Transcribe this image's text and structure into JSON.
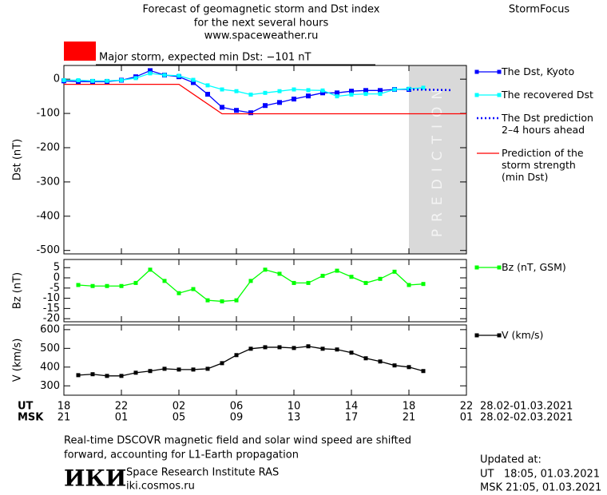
{
  "header": {
    "title_lines": [
      "Forecast of geomagnetic storm and Dst index",
      "for the next several hours",
      "www.spaceweather.ru"
    ],
    "brand": "StormFocus"
  },
  "chart_data": [
    {
      "type": "line",
      "y_label": "Dst (nT)",
      "xlim": [
        0,
        28
      ],
      "ylim": [
        -510,
        40
      ],
      "yticks": [
        0,
        -100,
        -200,
        -300,
        -400,
        -500
      ],
      "annotation": "Major storm, expected min Dst: −101 nT",
      "annotation_color": "#ff0000",
      "shade": {
        "label": "PREDICTION",
        "x": [
          24,
          28
        ],
        "color": "#d9d9d9"
      },
      "series": [
        {
          "name": "The Dst, Kyoto",
          "color": "#0000ff",
          "marker": "square",
          "dash": "solid",
          "x": [
            0,
            1,
            2,
            3,
            4,
            5,
            6,
            7,
            8,
            9,
            10,
            11,
            12,
            13,
            14,
            15,
            16,
            17,
            18,
            19,
            20,
            21,
            22,
            23,
            24
          ],
          "values": [
            -5,
            -7,
            -7,
            -7,
            -3,
            7,
            25,
            12,
            7,
            -10,
            -44,
            -82,
            -91,
            -98,
            -77,
            -68,
            -58,
            -49,
            -40,
            -40,
            -35,
            -33,
            -33,
            -30,
            -30
          ]
        },
        {
          "name": "The recovered Dst",
          "color": "#00ffff",
          "marker": "square-small",
          "dash": "solid",
          "x": [
            0,
            1,
            2,
            3,
            4,
            5,
            6,
            7,
            8,
            9,
            10,
            11,
            12,
            13,
            14,
            15,
            16,
            17,
            18,
            19,
            20,
            21,
            22,
            23,
            24,
            25
          ],
          "values": [
            -3,
            -3,
            -5,
            -5,
            -3,
            3,
            17,
            12,
            10,
            -2,
            -18,
            -30,
            -35,
            -45,
            -40,
            -35,
            -30,
            -32,
            -33,
            -50,
            -45,
            -43,
            -43,
            -30,
            -28,
            -25
          ]
        },
        {
          "name": "The Dst prediction\n2–4 hours ahead",
          "color": "#0000ff",
          "marker": "none",
          "dash": "dotted",
          "x": [
            24,
            27
          ],
          "values": [
            -30,
            -32
          ]
        },
        {
          "name": "Prediction of the\nstorm strength\n(min Dst)",
          "color": "#ff0000",
          "marker": "none",
          "dash": "solid",
          "x": [
            0,
            8,
            11,
            28
          ],
          "values": [
            -15,
            -15,
            -101,
            -101
          ]
        }
      ]
    },
    {
      "type": "line",
      "y_label": "Bz (nT)",
      "xlim": [
        0,
        28
      ],
      "ylim": [
        -21.5,
        9
      ],
      "yticks": [
        5,
        0,
        -5,
        -10,
        -15,
        -20
      ],
      "series": [
        {
          "name": "Bz (nT, GSM)",
          "color": "#00ff00",
          "marker": "square-small",
          "dash": "solid",
          "x": [
            1,
            2,
            3,
            4,
            5,
            6,
            7,
            8,
            9,
            10,
            11,
            12,
            13,
            14,
            15,
            16,
            17,
            18,
            19,
            20,
            21,
            22,
            23,
            24,
            25
          ],
          "values": [
            -3.5,
            -4,
            -4,
            -4,
            -2.5,
            4,
            -1.5,
            -7.5,
            -5.5,
            -11,
            -11.5,
            -11,
            -1.5,
            4,
            2,
            -2.5,
            -2.5,
            1,
            3.5,
            0.5,
            -2.5,
            -0.5,
            3,
            -3.5,
            -3
          ]
        }
      ]
    },
    {
      "type": "line",
      "y_label": "V (km/s)",
      "xlim": [
        0,
        28
      ],
      "ylim": [
        250,
        625
      ],
      "yticks": [
        600,
        500,
        400,
        300
      ],
      "x_row_label": "UT",
      "x_row2_label": "MSK",
      "x_date": "28.02-01.03.2021",
      "x_row2_date": "28.02-02.03.2021",
      "xticks": [
        {
          "value": 0,
          "label": "18"
        },
        {
          "value": 4,
          "label": "22"
        },
        {
          "value": 8,
          "label": "02"
        },
        {
          "value": 12,
          "label": "06"
        },
        {
          "value": 16,
          "label": "10"
        },
        {
          "value": 20,
          "label": "14"
        },
        {
          "value": 24,
          "label": "18"
        },
        {
          "value": 28,
          "label": "22"
        }
      ],
      "msk_xticks": [
        {
          "value": 0,
          "label": "21"
        },
        {
          "value": 4,
          "label": "01"
        },
        {
          "value": 8,
          "label": "05"
        },
        {
          "value": 12,
          "label": "09"
        },
        {
          "value": 16,
          "label": "13"
        },
        {
          "value": 20,
          "label": "17"
        },
        {
          "value": 24,
          "label": "21"
        },
        {
          "value": 28,
          "label": "01"
        }
      ],
      "series": [
        {
          "name": "V (km/s)",
          "color": "#000000",
          "marker": "square-small",
          "dash": "solid",
          "x": [
            1,
            2,
            3,
            4,
            5,
            6,
            7,
            8,
            9,
            10,
            11,
            12,
            13,
            14,
            15,
            16,
            17,
            18,
            19,
            20,
            21,
            22,
            23,
            24,
            25
          ],
          "values": [
            357,
            362,
            353,
            353,
            370,
            379,
            391,
            387,
            387,
            391,
            421,
            464,
            498,
            506,
            506,
            502,
            511,
            498,
            494,
            477,
            447,
            430,
            409,
            400,
            379
          ]
        }
      ]
    }
  ],
  "footer": {
    "note_lines": [
      "Real-time DSCOVR magnetic field and solar wind speed are shifted",
      "forward, accounting for L1-Earth propagation"
    ],
    "logo": "ИКИ",
    "institute": "Space Research Institute RAS",
    "site": "iki.cosmos.ru",
    "updated_label": "Updated at:",
    "updated_ut": "UT   18:05, 01.03.2021",
    "updated_msk": "MSK 21:05, 01.03.2021"
  }
}
